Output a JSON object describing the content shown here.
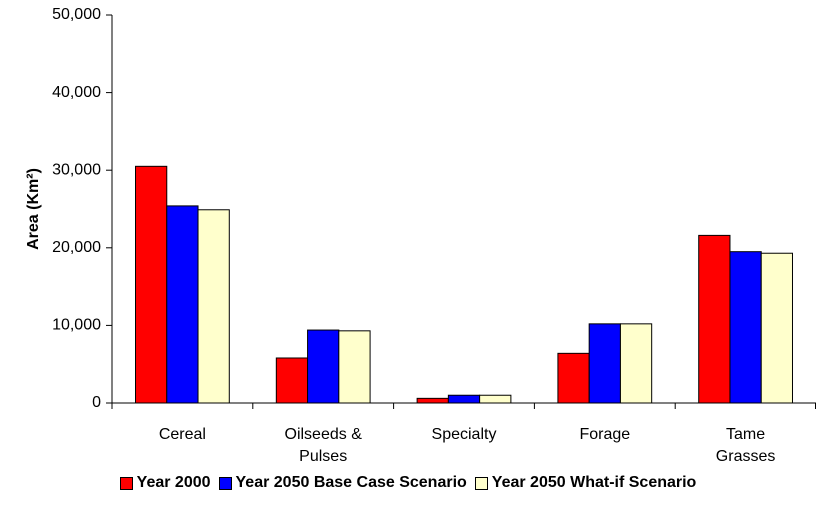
{
  "chart_data": {
    "type": "bar",
    "y_label": "Area (Km²)",
    "categories": [
      "Cereal",
      "Oilseeds & Pulses",
      "Specialty",
      "Forage",
      "Tame Grasses"
    ],
    "series": [
      {
        "name": "Year 2000",
        "color": "#ff0000",
        "values": [
          30500,
          5800,
          600,
          6400,
          21600
        ]
      },
      {
        "name": "Year 2050 Base Case Scenario",
        "color": "#0000ff",
        "values": [
          25400,
          9400,
          1000,
          10200,
          19500
        ]
      },
      {
        "name": "Year 2050 What-if Scenario",
        "color": "#ffffcc",
        "values": [
          24900,
          9300,
          1000,
          10200,
          19300
        ]
      }
    ],
    "ylim": [
      0,
      50000
    ],
    "yticks": [
      0,
      {
        "value": 10000,
        "label": "10,000"
      },
      {
        "value": 20000,
        "label": "20,000"
      },
      {
        "value": 30000,
        "label": "30,000"
      },
      {
        "value": 40000,
        "label": "40,000"
      },
      {
        "value": 50000,
        "label": "50,000"
      }
    ],
    "grid": false,
    "legend": "bottom"
  }
}
